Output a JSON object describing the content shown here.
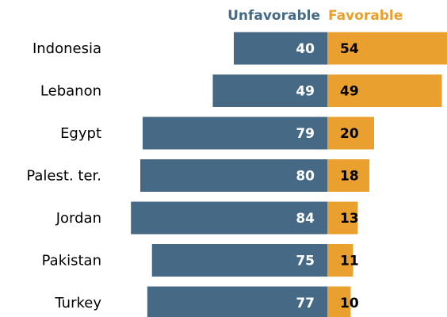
{
  "chart_data": {
    "type": "bar",
    "orientation": "horizontal-diverging",
    "categories": [
      "Indonesia",
      "Lebanon",
      "Egypt",
      "Palest. ter.",
      "Jordan",
      "Pakistan",
      "Turkey"
    ],
    "series": [
      {
        "name": "Unfavorable",
        "values": [
          40,
          49,
          79,
          80,
          84,
          75,
          77
        ]
      },
      {
        "name": "Favorable",
        "values": [
          54,
          49,
          20,
          18,
          13,
          11,
          10
        ]
      }
    ],
    "legend_position": "top",
    "grid": false
  },
  "colors": {
    "unfavorable": "#466a85",
    "favorable": "#eaa02e",
    "unfavorable_value_text": "#ffffff",
    "favorable_value_text": "#000000"
  }
}
